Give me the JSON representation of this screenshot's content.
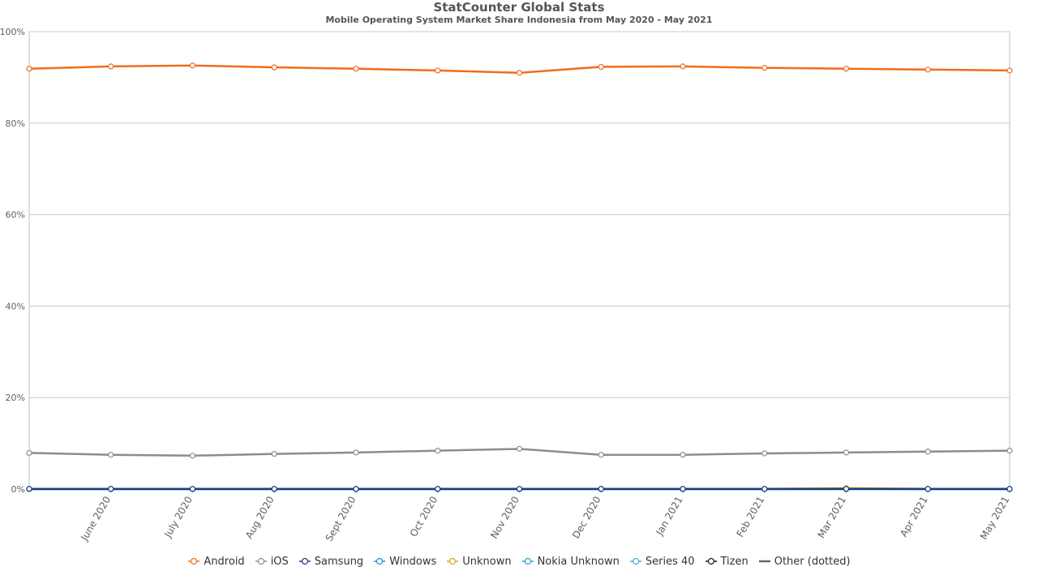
{
  "header": {
    "title": "StatCounter Global Stats",
    "subtitle": "Mobile Operating System Market Share Indonesia from May 2020 - May 2021"
  },
  "chart_data": {
    "type": "line",
    "title": "StatCounter Global Stats",
    "subtitle": "Mobile Operating System Market Share Indonesia from May 2020 - May 2021",
    "xlabel": "",
    "ylabel": "",
    "categories": [
      "May 2020",
      "June 2020",
      "July 2020",
      "Aug 2020",
      "Sept 2020",
      "Oct 2020",
      "Nov 2020",
      "Dec 2020",
      "Jan 2021",
      "Feb 2021",
      "Mar 2021",
      "Apr 2021",
      "May 2021"
    ],
    "x_tick_labels": [
      "June 2020",
      "July 2020",
      "Aug 2020",
      "Sept 2020",
      "Oct 2020",
      "Nov 2020",
      "Dec 2020",
      "Jan 2021",
      "Feb 2021",
      "Mar 2021",
      "Apr 2021",
      "May 2021"
    ],
    "y_ticks": [
      0,
      20,
      40,
      60,
      80,
      100
    ],
    "y_tick_labels": [
      "0%",
      "20%",
      "40%",
      "60%",
      "80%",
      "100%"
    ],
    "ylim": [
      0,
      100
    ],
    "grid": true,
    "legend_position": "bottom",
    "series": [
      {
        "name": "Android",
        "color": "#f26b1d",
        "values": [
          91.9,
          92.4,
          92.6,
          92.2,
          91.9,
          91.5,
          91.0,
          92.3,
          92.4,
          92.1,
          91.9,
          91.7,
          91.5
        ]
      },
      {
        "name": "iOS",
        "color": "#8c8c8c",
        "values": [
          7.9,
          7.5,
          7.3,
          7.7,
          8.0,
          8.4,
          8.8,
          7.5,
          7.5,
          7.8,
          8.0,
          8.2,
          8.4
        ]
      },
      {
        "name": "Samsung",
        "color": "#1e3f7e",
        "values": [
          0.05,
          0.04,
          0.04,
          0.04,
          0.04,
          0.04,
          0.04,
          0.04,
          0.04,
          0.04,
          0.05,
          0.04,
          0.04
        ]
      },
      {
        "name": "Windows",
        "color": "#1f8ccf",
        "values": [
          0.02,
          0.02,
          0.02,
          0.02,
          0.02,
          0.02,
          0.02,
          0.02,
          0.02,
          0.02,
          0.02,
          0.02,
          0.02
        ]
      },
      {
        "name": "Unknown",
        "color": "#d4a514",
        "values": [
          0.03,
          0.03,
          0.03,
          0.03,
          0.03,
          0.03,
          0.03,
          0.03,
          0.03,
          0.03,
          0.2,
          0.05,
          0.03
        ]
      },
      {
        "name": "Nokia Unknown",
        "color": "#1ba7c4",
        "values": [
          0.01,
          0.01,
          0.01,
          0.01,
          0.01,
          0.01,
          0.01,
          0.01,
          0.01,
          0.01,
          0.01,
          0.01,
          0.01
        ]
      },
      {
        "name": "Series 40",
        "color": "#49a8e0",
        "values": [
          0.01,
          0.01,
          0.01,
          0.01,
          0.01,
          0.01,
          0.01,
          0.01,
          0.01,
          0.01,
          0.01,
          0.01,
          0.01
        ]
      },
      {
        "name": "Tizen",
        "color": "#1a1a1a",
        "values": [
          0.02,
          0.02,
          0.02,
          0.02,
          0.02,
          0.02,
          0.02,
          0.02,
          0.02,
          0.02,
          0.03,
          0.02,
          0.02
        ]
      },
      {
        "name": "Other (dotted)",
        "color": "#666666",
        "values": [
          0.04,
          0.04,
          0.04,
          0.04,
          0.04,
          0.04,
          0.04,
          0.04,
          0.04,
          0.04,
          0.04,
          0.04,
          0.04
        ],
        "markers": false
      }
    ]
  }
}
